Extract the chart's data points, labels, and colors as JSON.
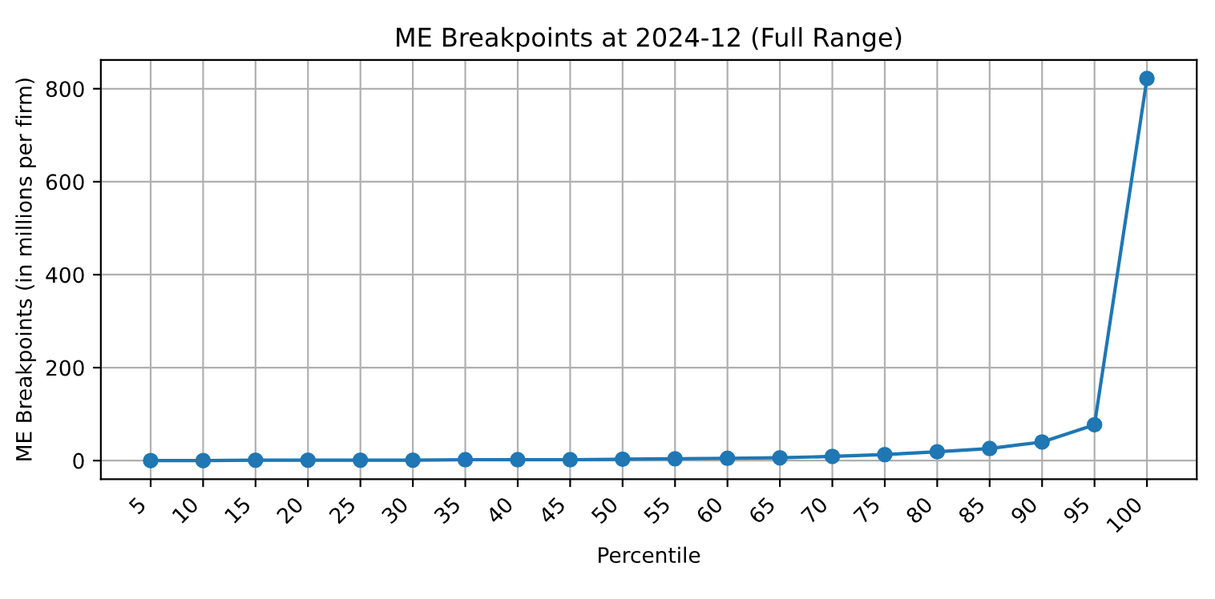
{
  "chart_data": {
    "type": "line",
    "title": "ME Breakpoints at 2024-12 (Full Range)",
    "xlabel": "Percentile",
    "ylabel": "ME Breakpoints (in millions per firm)",
    "categories": [
      "5",
      "10",
      "15",
      "20",
      "25",
      "30",
      "35",
      "40",
      "45",
      "50",
      "55",
      "60",
      "65",
      "70",
      "75",
      "80",
      "85",
      "90",
      "95",
      "100"
    ],
    "series": [
      {
        "color": "#1f77b4",
        "values": [
          0,
          0,
          1,
          1,
          1,
          1,
          2,
          2,
          2,
          3,
          4,
          5,
          6,
          9,
          13,
          19,
          26,
          40,
          77,
          822
        ]
      }
    ],
    "ylim": [
      -40,
      862
    ],
    "yticks": [
      0,
      200,
      400,
      600,
      800
    ],
    "grid": true,
    "marker": "circle",
    "line_style": "solid"
  }
}
